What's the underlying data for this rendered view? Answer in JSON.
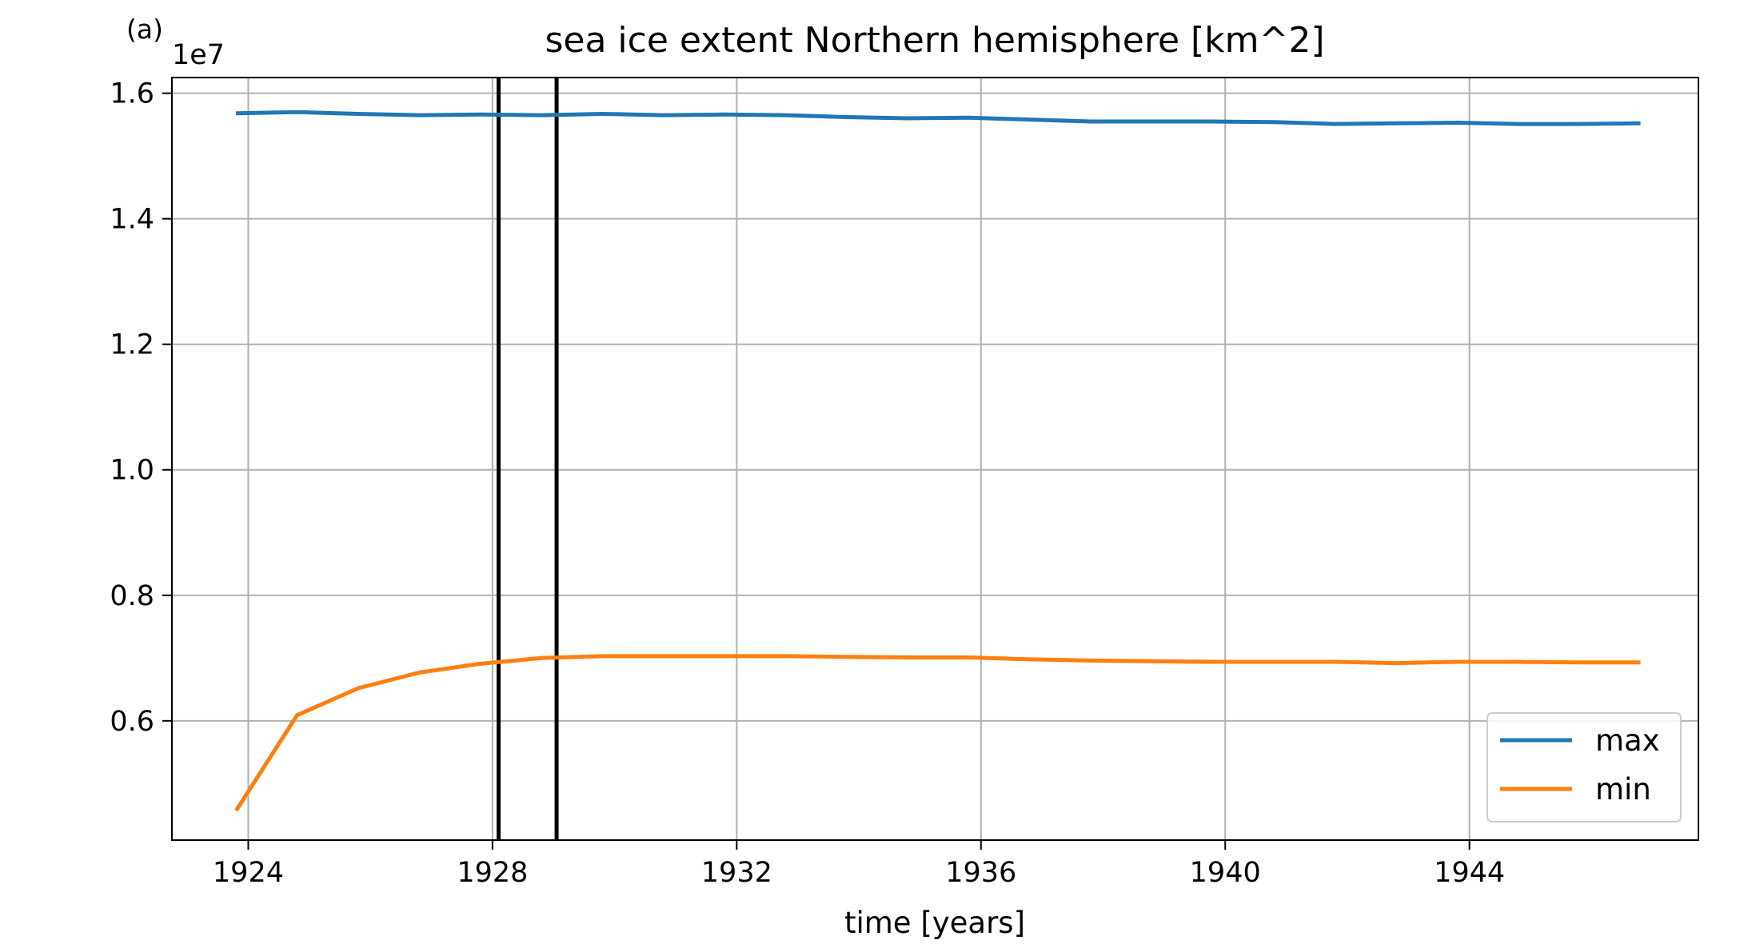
{
  "panel_label": "(a)",
  "chart_data": {
    "type": "line",
    "title": "sea ice extent Northern hemisphere [km^2]",
    "xlabel": "time [years]",
    "ylabel": "",
    "y_offset_label": "1e7",
    "xlim": [
      1922.75,
      1947.75
    ],
    "ylim": [
      0.41,
      1.625
    ],
    "x_ticks": [
      1924,
      1928,
      1932,
      1936,
      1940,
      1944
    ],
    "x_tick_labels": [
      "1924",
      "1928",
      "1932",
      "1936",
      "1940",
      "1944"
    ],
    "y_ticks": [
      0.6,
      0.8,
      1.0,
      1.2,
      1.4,
      1.6
    ],
    "y_tick_labels": [
      "0.6",
      "0.8",
      "1.0",
      "1.2",
      "1.4",
      "1.6"
    ],
    "grid": true,
    "legend_position": "lower-right",
    "vertical_lines": [
      1928.1,
      1929.05
    ],
    "x": [
      1923.8,
      1924.8,
      1925.8,
      1926.8,
      1927.8,
      1928.8,
      1929.8,
      1930.8,
      1931.8,
      1932.8,
      1933.8,
      1934.8,
      1935.8,
      1936.8,
      1937.8,
      1938.8,
      1939.8,
      1940.8,
      1941.8,
      1942.8,
      1943.8,
      1944.8,
      1945.8,
      1946.8
    ],
    "series": [
      {
        "name": "max",
        "color": "#1f77b4",
        "values": [
          1.568,
          1.57,
          1.567,
          1.565,
          1.566,
          1.565,
          1.567,
          1.565,
          1.566,
          1.565,
          1.562,
          1.56,
          1.561,
          1.558,
          1.555,
          1.555,
          1.555,
          1.554,
          1.551,
          1.552,
          1.553,
          1.551,
          1.551,
          1.552
        ]
      },
      {
        "name": "min",
        "color": "#ff7f0e",
        "values": [
          0.457,
          0.609,
          0.652,
          0.677,
          0.691,
          0.7,
          0.703,
          0.703,
          0.703,
          0.703,
          0.702,
          0.701,
          0.701,
          0.698,
          0.696,
          0.695,
          0.694,
          0.694,
          0.694,
          0.692,
          0.694,
          0.694,
          0.693,
          0.693
        ]
      }
    ]
  }
}
